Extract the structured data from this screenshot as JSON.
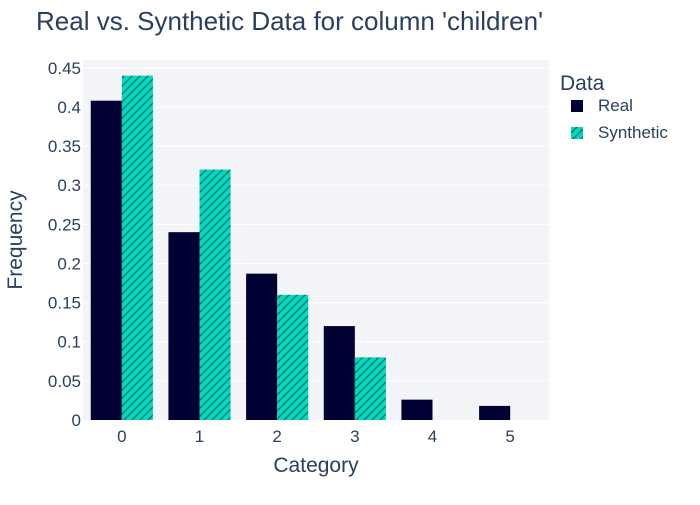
{
  "chart_data": {
    "type": "bar",
    "title": "Real vs. Synthetic Data for column 'children'",
    "xlabel": "Category",
    "ylabel": "Frequency",
    "categories": [
      "0",
      "1",
      "2",
      "3",
      "4",
      "5"
    ],
    "series": [
      {
        "name": "Real",
        "values": [
          0.408,
          0.24,
          0.187,
          0.12,
          0.026,
          0.018
        ],
        "color": "#000033",
        "pattern": "solid"
      },
      {
        "name": "Synthetic",
        "values": [
          0.44,
          0.32,
          0.16,
          0.08,
          0,
          0
        ],
        "color": "#00d9be",
        "pattern": "diagonal-hatch"
      }
    ],
    "ylim": [
      0,
      0.46
    ],
    "yticks": [
      0,
      0.05,
      0.1,
      0.15,
      0.2,
      0.25,
      0.3,
      0.35,
      0.4,
      0.45
    ],
    "ytick_labels": [
      "0",
      "0.05",
      "0.1",
      "0.15",
      "0.2",
      "0.25",
      "0.3",
      "0.35",
      "0.4",
      "0.45"
    ],
    "grid": true,
    "plot_background": "#f3f4f8",
    "legend": {
      "title": "Data",
      "placement": "right"
    }
  }
}
